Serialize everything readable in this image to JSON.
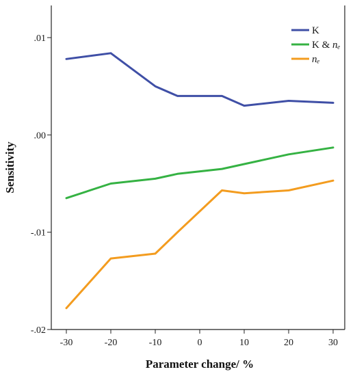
{
  "chart_data": {
    "type": "line",
    "xlabel": "Parameter change/ %",
    "ylabel": "Sensitivity",
    "xlim": [
      -30,
      30
    ],
    "ylim": [
      -0.02,
      0.01
    ],
    "x_ticks": [
      -30,
      -20,
      -10,
      0,
      10,
      20,
      30
    ],
    "x_tick_labels": [
      "-30",
      "-20",
      "-10",
      "0",
      "10",
      "20",
      "30"
    ],
    "y_ticks": [
      -0.02,
      -0.01,
      0.0,
      0.01
    ],
    "y_tick_labels": [
      "-.02",
      "-.01",
      ".00",
      ".01"
    ],
    "grid": false,
    "legend_position": "top-right",
    "series": [
      {
        "name_main": "K",
        "name_italic": "",
        "color": "#3f4fa6",
        "x": [
          -30,
          -20,
          -10,
          -5,
          5,
          10,
          20,
          30
        ],
        "y": [
          0.0078,
          0.0084,
          0.005,
          0.004,
          0.004,
          0.003,
          0.0035,
          0.0033
        ]
      },
      {
        "name_main": "K & ",
        "name_italic": "nₑ",
        "color": "#35b243",
        "x": [
          -30,
          -20,
          -10,
          -5,
          5,
          10,
          20,
          30
        ],
        "y": [
          -0.0065,
          -0.005,
          -0.0045,
          -0.004,
          -0.0035,
          -0.003,
          -0.002,
          -0.0013
        ]
      },
      {
        "name_main": "",
        "name_italic": "nₑ",
        "color": "#f39c1f",
        "x": [
          -30,
          -20,
          -10,
          -5,
          5,
          10,
          20,
          30
        ],
        "y": [
          -0.0178,
          -0.0127,
          -0.0122,
          -0.01,
          -0.0057,
          -0.006,
          -0.0057,
          -0.0047
        ]
      }
    ]
  }
}
